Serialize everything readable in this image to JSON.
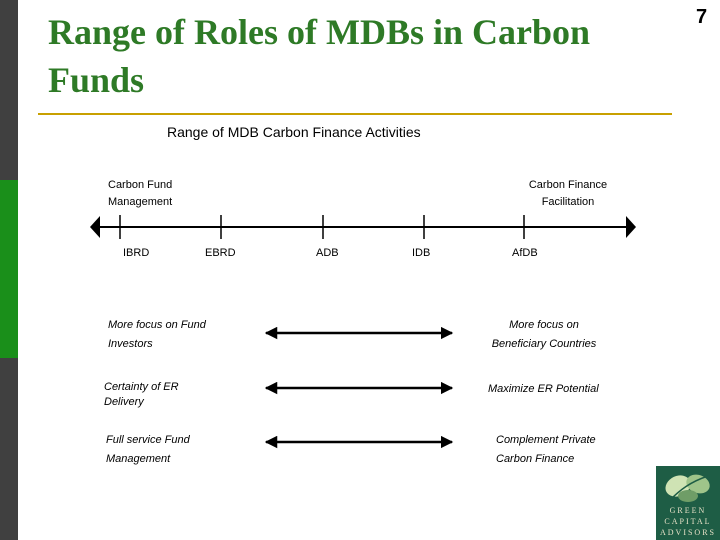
{
  "slide": {
    "title": "Range of Roles of MDBs in Carbon Funds",
    "page_number": "7",
    "subtitle": "Range of MDB Carbon Finance Activities"
  },
  "spectrum": {
    "left_label": "Carbon Fund Management",
    "right_label": "Carbon Finance Facilitation",
    "institutions": [
      "IBRD",
      "EBRD",
      "ADB",
      "IDB",
      "AfDB"
    ]
  },
  "comparisons": [
    {
      "left": "More focus on Fund Investors",
      "right": "More focus on Beneficiary Countries"
    },
    {
      "left": "Certainty of ER Delivery",
      "right": "Maximize ER Potential"
    },
    {
      "left": "Full service Fund Management",
      "right": "Complement Private Carbon Finance"
    }
  ],
  "logo": {
    "line1": "GREEN",
    "line2": "CAPITAL",
    "line3": "ADVISORS"
  },
  "colors": {
    "title": "#2e7a26",
    "accent_bar": "#1a8f1a",
    "rule": "#c8a000",
    "logo_bg": "#1e5d45"
  }
}
